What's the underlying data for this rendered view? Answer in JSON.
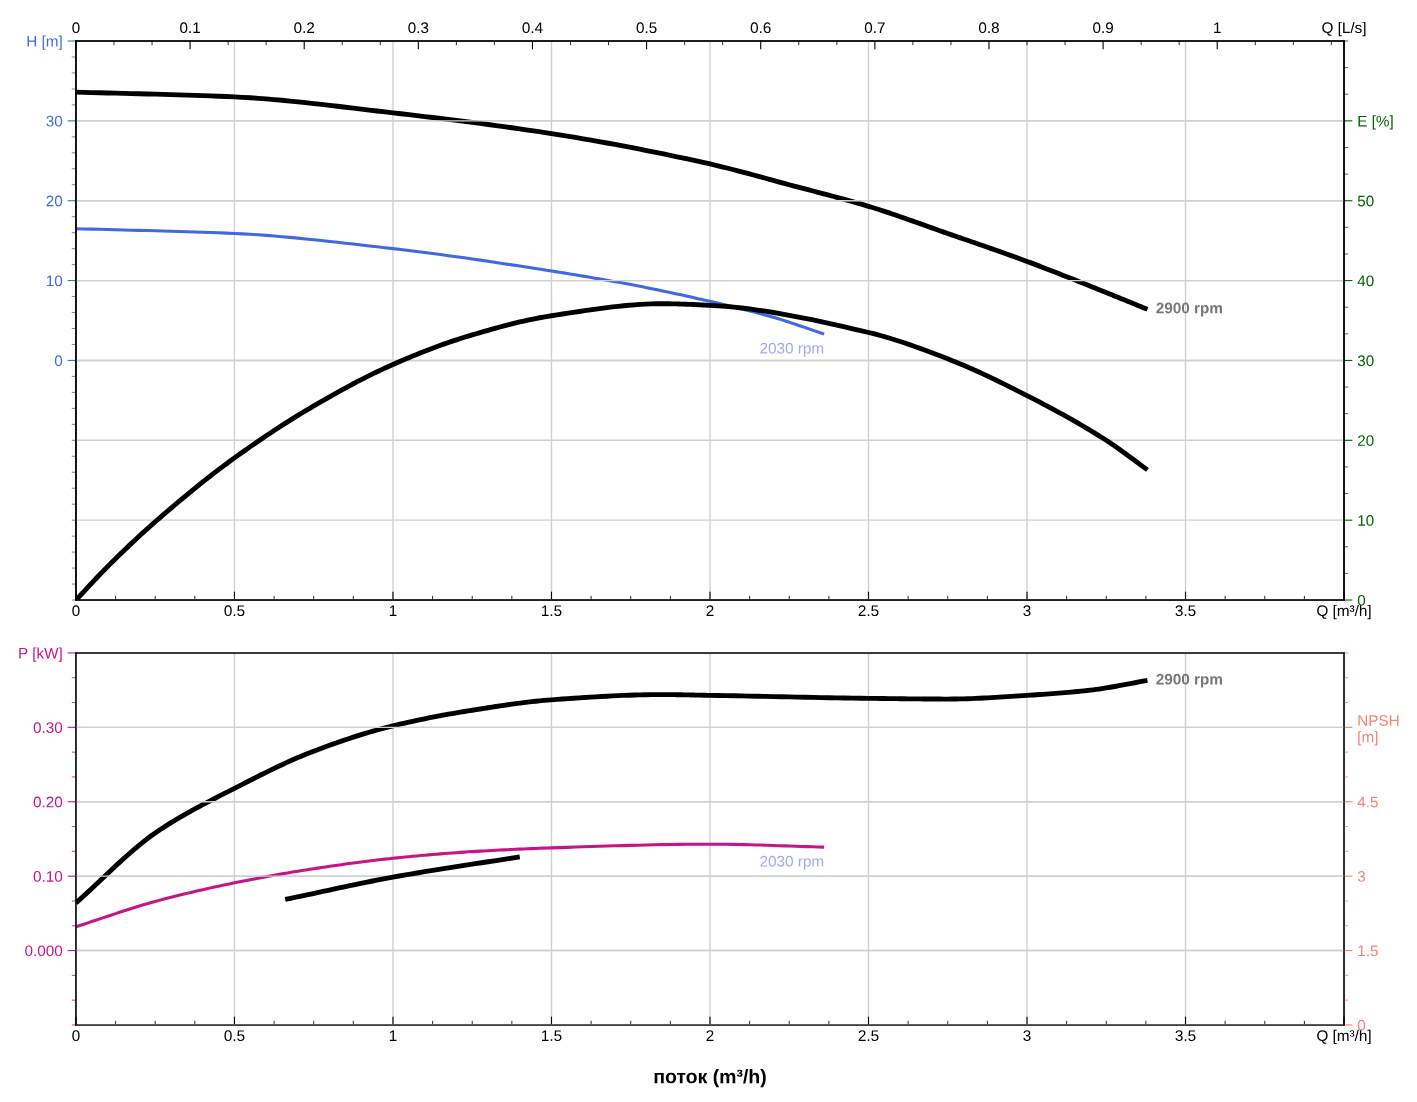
{
  "chart_data": [
    {
      "type": "line",
      "xlim": [
        0,
        4
      ],
      "xticks": [
        0,
        0.5,
        1,
        1.5,
        2,
        2.5,
        3,
        3.5,
        {
          "value": 4,
          "label": "Q [m³/h]"
        }
      ],
      "x2lim": [
        0,
        1.1111
      ],
      "x2ticks": [
        0,
        0.1,
        0.2,
        0.3,
        0.4,
        0.5,
        0.6,
        0.7,
        0.8,
        0.9,
        1,
        {
          "value": 1.1111,
          "label": "Q [L/s]"
        }
      ],
      "ylim": [
        -30,
        40
      ],
      "yticks": [
        0,
        10,
        20,
        30,
        {
          "value": 40,
          "label": "H [m]"
        }
      ],
      "y2lim": [
        0,
        70
      ],
      "y2ticks": [
        0,
        10,
        20,
        30,
        40,
        50,
        {
          "value": 60,
          "label": "E [%]"
        }
      ],
      "grid": true,
      "legend": false,
      "line_style": "solid",
      "marker": "none",
      "series": [
        {
          "name": "2900 rpm",
          "color": "#000000",
          "axis": "y",
          "x": [
            0,
            0.5,
            1,
            1.5,
            2,
            2.25,
            2.5,
            2.75,
            3,
            3.25,
            3.38
          ],
          "values": [
            33.6,
            33.0,
            31.0,
            28.4,
            24.6,
            22.0,
            19.3,
            15.9,
            12.4,
            8.5,
            6.4
          ]
        },
        {
          "name": "2030 rpm",
          "color": "#4169e1",
          "axis": "y",
          "x": [
            0,
            0.5,
            1,
            1.5,
            1.75,
            2,
            2.2,
            2.36
          ],
          "values": [
            16.5,
            15.9,
            14.0,
            11.2,
            9.5,
            7.4,
            5.4,
            3.3
          ]
        },
        {
          "color": "#000000",
          "axis": "y2",
          "x": [
            0,
            0.1,
            0.25,
            0.5,
            0.75,
            1,
            1.25,
            1.5,
            1.85,
            2,
            2.5,
            2.75,
            3,
            3.25,
            3.38
          ],
          "values": [
            0,
            4.2,
            9.8,
            17.8,
            24.3,
            29.5,
            33.2,
            35.6,
            37.1,
            36.9,
            33.5,
            30.2,
            25.6,
            20.0,
            16.3
          ]
        }
      ]
    },
    {
      "type": "line",
      "xlabel": "поток (m³/h)",
      "xlim": [
        0,
        4
      ],
      "xticks": [
        0,
        0.5,
        1,
        1.5,
        2,
        2.5,
        3,
        3.5,
        {
          "value": 4,
          "label": "Q [m³/h]"
        }
      ],
      "ylim": [
        -0.1,
        0.4
      ],
      "yticks": [
        {
          "value": 0,
          "label": "0.000"
        },
        {
          "value": 0.1,
          "label": "0.10"
        },
        {
          "value": 0.2,
          "label": "0.20"
        },
        {
          "value": 0.3,
          "label": "0.30"
        },
        {
          "value": 0.4,
          "label": "P [kW]"
        }
      ],
      "y2lim": [
        0,
        7.5
      ],
      "y2ticks": [
        0,
        1.5,
        3,
        4.5,
        {
          "value": 6,
          "label": "NPSH\n[m]"
        }
      ],
      "grid": true,
      "legend": false,
      "line_style": "solid",
      "marker": "none",
      "series": [
        {
          "name": "2900 rpm",
          "color": "#000000",
          "axis": "y",
          "x": [
            0,
            0.25,
            0.5,
            0.75,
            1,
            1.25,
            1.5,
            1.85,
            2,
            2.5,
            2.75,
            3,
            3.2,
            3.38
          ],
          "values": [
            0.064,
            0.158,
            0.218,
            0.268,
            0.302,
            0.323,
            0.337,
            0.344,
            0.343,
            0.339,
            0.338,
            0.343,
            0.35,
            0.363
          ]
        },
        {
          "name": "2030 rpm",
          "color": "#c71585",
          "axis": "y",
          "x": [
            0,
            0.25,
            0.5,
            0.75,
            1,
            1.25,
            1.5,
            2,
            2.36
          ],
          "values": [
            0.032,
            0.066,
            0.091,
            0.11,
            0.124,
            0.133,
            0.138,
            0.143,
            0.139
          ]
        },
        {
          "color": "#000000",
          "axis": "y2",
          "x": [
            0.66,
            1,
            1.4
          ],
          "values": [
            2.53,
            2.98,
            3.39
          ]
        }
      ]
    }
  ]
}
